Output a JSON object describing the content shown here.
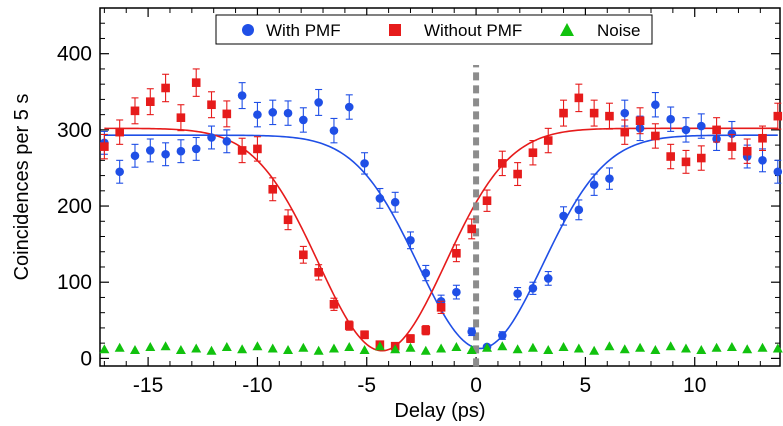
{
  "chart_data": {
    "type": "scatter",
    "xlabel": "Delay (ps)",
    "ylabel": "Coincidences per 5 s",
    "xlim": [
      -17.2,
      13.9
    ],
    "ylim": [
      -10,
      460
    ],
    "xticks": [
      -15,
      -10,
      -5,
      0,
      5,
      10
    ],
    "yticks": [
      0,
      100,
      200,
      300,
      400
    ],
    "legend_position": "top-center",
    "reference_line": {
      "x": 0,
      "style": "dashed",
      "color": "#8c8c8c"
    },
    "series": [
      {
        "name": "With PMF",
        "marker": "circle",
        "color": "#1f4fe6",
        "x": [
          -17,
          -16.3,
          -15.6,
          -14.9,
          -14.2,
          -13.5,
          -12.8,
          -12.1,
          -11.4,
          -10.7,
          -10.0,
          -9.3,
          -8.6,
          -7.9,
          -7.2,
          -6.5,
          -5.8,
          -5.1,
          -4.4,
          -3.7,
          -3.0,
          -2.3,
          -1.6,
          -0.9,
          -0.2,
          0.5,
          1.2,
          1.9,
          2.6,
          3.3,
          4.0,
          4.7,
          5.4,
          6.1,
          6.8,
          7.5,
          8.2,
          8.9,
          9.6,
          10.3,
          11.0,
          11.7,
          12.4,
          13.1,
          13.8
        ],
        "y": [
          283,
          245,
          266,
          273,
          268,
          272,
          275,
          290,
          285,
          345,
          320,
          323,
          322,
          313,
          336,
          299,
          330,
          256,
          210,
          205,
          155,
          112,
          75,
          87,
          35,
          15,
          30,
          85,
          92,
          105,
          187,
          195,
          228,
          236,
          322,
          302,
          333,
          314,
          300,
          305,
          288,
          295,
          265,
          260,
          245
        ],
        "err": [
          15,
          15,
          15,
          15,
          15,
          15,
          15,
          15,
          15,
          17,
          16,
          16,
          16,
          16,
          17,
          16,
          16,
          14,
          13,
          13,
          11,
          10,
          8,
          9,
          5,
          3,
          5,
          8,
          8,
          9,
          12,
          13,
          14,
          14,
          17,
          16,
          16,
          16,
          16,
          16,
          15,
          16,
          15,
          15,
          15
        ]
      },
      {
        "name": "Without PMF",
        "marker": "square",
        "color": "#e61b1b",
        "x": [
          -17,
          -16.3,
          -15.6,
          -14.9,
          -14.2,
          -13.5,
          -12.8,
          -12.1,
          -11.4,
          -10.7,
          -10.0,
          -9.3,
          -8.6,
          -7.9,
          -7.2,
          -6.5,
          -5.8,
          -5.1,
          -4.4,
          -3.7,
          -3.0,
          -2.3,
          -1.6,
          -0.9,
          -0.2,
          0.5,
          1.2,
          1.9,
          2.6,
          3.3,
          4.0,
          4.7,
          5.4,
          6.1,
          6.8,
          7.5,
          8.2,
          8.9,
          9.6,
          10.3,
          11.0,
          11.7,
          12.4,
          13.1,
          13.8
        ],
        "y": [
          278,
          297,
          325,
          337,
          355,
          316,
          362,
          333,
          321,
          273,
          275,
          222,
          182,
          136,
          113,
          71,
          43,
          31,
          18,
          16,
          26,
          37,
          67,
          138,
          170,
          207,
          256,
          242,
          270,
          286,
          322,
          342,
          322,
          318,
          297,
          312,
          292,
          265,
          258,
          263,
          300,
          278,
          272,
          289,
          318
        ],
        "err": [
          16,
          16,
          17,
          17,
          18,
          17,
          18,
          17,
          17,
          16,
          16,
          15,
          13,
          11,
          10,
          8,
          6,
          5,
          4,
          4,
          5,
          6,
          8,
          11,
          13,
          14,
          16,
          15,
          16,
          16,
          17,
          18,
          17,
          17,
          16,
          17,
          16,
          16,
          15,
          16,
          16,
          16,
          16,
          16,
          17
        ]
      },
      {
        "name": "Noise",
        "marker": "triangle",
        "color": "#11c20e",
        "x": [
          -17,
          -16.3,
          -15.6,
          -14.9,
          -14.2,
          -13.5,
          -12.8,
          -12.1,
          -11.4,
          -10.7,
          -10.0,
          -9.3,
          -8.6,
          -7.9,
          -7.2,
          -6.5,
          -5.8,
          -5.1,
          -4.4,
          -3.7,
          -3.0,
          -2.3,
          -1.6,
          -0.9,
          -0.2,
          0.5,
          1.2,
          1.9,
          2.6,
          3.3,
          4.0,
          4.7,
          5.4,
          6.1,
          6.8,
          7.5,
          8.2,
          8.9,
          9.6,
          10.3,
          11.0,
          11.7,
          12.4,
          13.1,
          13.8
        ],
        "y": [
          12,
          14,
          11,
          15,
          16,
          11,
          13,
          10,
          15,
          12,
          16,
          13,
          11,
          14,
          10,
          13,
          15,
          11,
          16,
          12,
          14,
          10,
          13,
          15,
          11,
          14,
          16,
          12,
          14,
          11,
          15,
          13,
          10,
          16,
          12,
          14,
          11,
          16,
          13,
          11,
          14,
          15,
          12,
          14,
          13
        ],
        "err": []
      }
    ],
    "fits": [
      {
        "name": "With PMF fit",
        "color": "#1f4fe6",
        "baseline": 293,
        "depth": 280,
        "center": 0.2,
        "width": 2.85,
        "xrange": [
          -17.0,
          13.8
        ]
      },
      {
        "name": "Without PMF fit",
        "color": "#e61b1b",
        "baseline": 302,
        "depth": 292,
        "center": -4.3,
        "width": 2.9,
        "xrange": [
          -17.0,
          13.8
        ]
      }
    ]
  }
}
